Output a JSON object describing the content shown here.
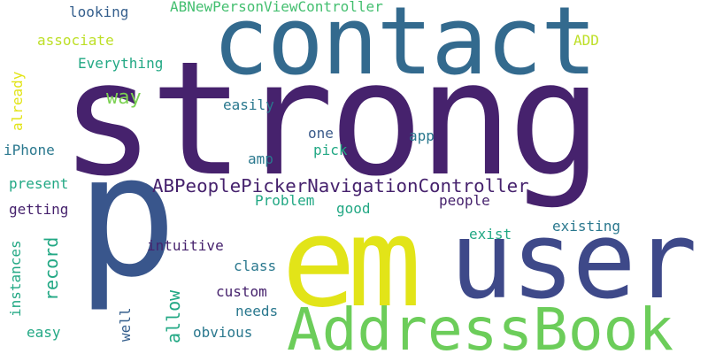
{
  "words": {
    "strong": "strong",
    "contact": "contact",
    "p": "p",
    "em": "em",
    "user": "user",
    "AddressBook": "AddressBook",
    "ABPeoplePickerNavigationController": "ABPeoplePickerNavigationController",
    "ABNewPersonViewController": "ABNewPersonViewController",
    "looking": "looking",
    "associate": "associate",
    "Everything": "Everything",
    "ADD": "ADD",
    "way": "way",
    "easily": "easily",
    "already": "already",
    "one": "one",
    "app": "app",
    "iPhone": "iPhone",
    "pick": "pick",
    "amp": "amp",
    "present": "present",
    "Problem": "Problem",
    "people": "people",
    "getting": "getting",
    "good": "good",
    "existing": "existing",
    "exist": "exist",
    "record": "record",
    "intuitive": "intuitive",
    "instances": "instances",
    "class": "class",
    "allow": "allow",
    "custom": "custom",
    "well": "well",
    "needs": "needs",
    "easy": "easy",
    "obvious": "obvious"
  },
  "colors": {
    "dark_purple": "#46226d",
    "purple": "#482677",
    "slate_blue": "#3b5a8a",
    "mid_blue": "#355f8d",
    "teal": "#2a788e",
    "green_teal": "#22a884",
    "green": "#44bf70",
    "light_green": "#7ad151",
    "yellow_green": "#bddf26",
    "yellow": "#e2e418"
  }
}
